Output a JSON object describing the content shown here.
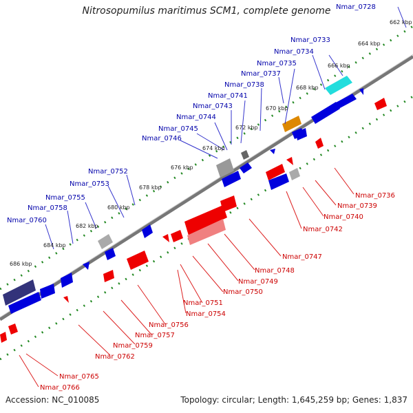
{
  "title": "Nitrosopumilus maritimus SCM1, complete genome",
  "footer": {
    "accession": "Accession: NC_010085",
    "summary": "Topology: circular; Length: 1,645,259 bp; Genes: 1,837"
  },
  "colors": {
    "forward": "#0000ee",
    "reverse": "#ee0000",
    "label_forward": "#0000aa",
    "label_reverse": "#cc0000",
    "backbone": "#777777",
    "ticks": "#228822"
  },
  "ticks": [
    "662 kbp",
    "664 kbp",
    "666 kbp",
    "668 kbp",
    "670 kbp",
    "672 kbp",
    "674 kbp",
    "676 kbp",
    "678 kbp",
    "680 kbp",
    "682 kbp",
    "684 kbp",
    "686 kbp"
  ],
  "forward_labels": [
    "Nmar_0728",
    "Nmar_0733",
    "Nmar_0734",
    "Nmar_0735",
    "Nmar_0737",
    "Nmar_0738",
    "Nmar_0741",
    "Nmar_0743",
    "Nmar_0744",
    "Nmar_0745",
    "Nmar_0746",
    "Nmar_0752",
    "Nmar_0753",
    "Nmar_0755",
    "Nmar_0758",
    "Nmar_0760"
  ],
  "reverse_labels": [
    "Nmar_0736",
    "Nmar_0739",
    "Nmar_0740",
    "Nmar_0742",
    "Nmar_0747",
    "Nmar_0748",
    "Nmar_0749",
    "Nmar_0750",
    "Nmar_0751",
    "Nmar_0754",
    "Nmar_0756",
    "Nmar_0757",
    "Nmar_0759",
    "Nmar_0762",
    "Nmar_0765",
    "Nmar_0766"
  ]
}
